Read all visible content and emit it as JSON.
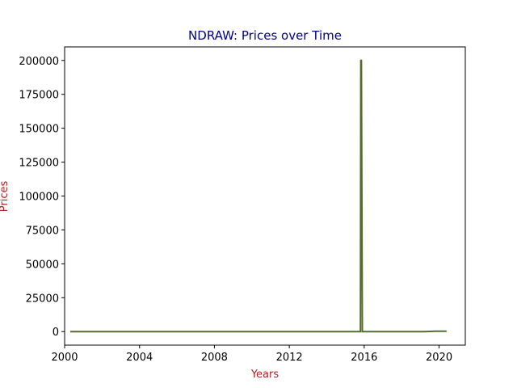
{
  "chart_data": {
    "type": "line",
    "title": "NDRAW: Prices over Time",
    "xlabel": "Years",
    "ylabel": "Prices",
    "xlim": [
      2000.0,
      2021.4
    ],
    "ylim": [
      -10000,
      210000
    ],
    "xticks": [
      2000,
      2004,
      2008,
      2012,
      2016,
      2020
    ],
    "yticks": [
      0,
      25000,
      50000,
      75000,
      100000,
      125000,
      150000,
      175000,
      200000
    ],
    "grid": false,
    "series": [
      {
        "color": "#556b2f",
        "x": [
          2000.3,
          2015.8,
          2015.82,
          2015.85,
          2015.9,
          2019.2,
          2019.8,
          2020.4
        ],
        "y": [
          0,
          0,
          200000,
          200000,
          0,
          0,
          300,
          300
        ]
      }
    ]
  },
  "colors": {
    "title": "#00008b",
    "axis_label": "#b22222",
    "line": "#556b2f"
  }
}
